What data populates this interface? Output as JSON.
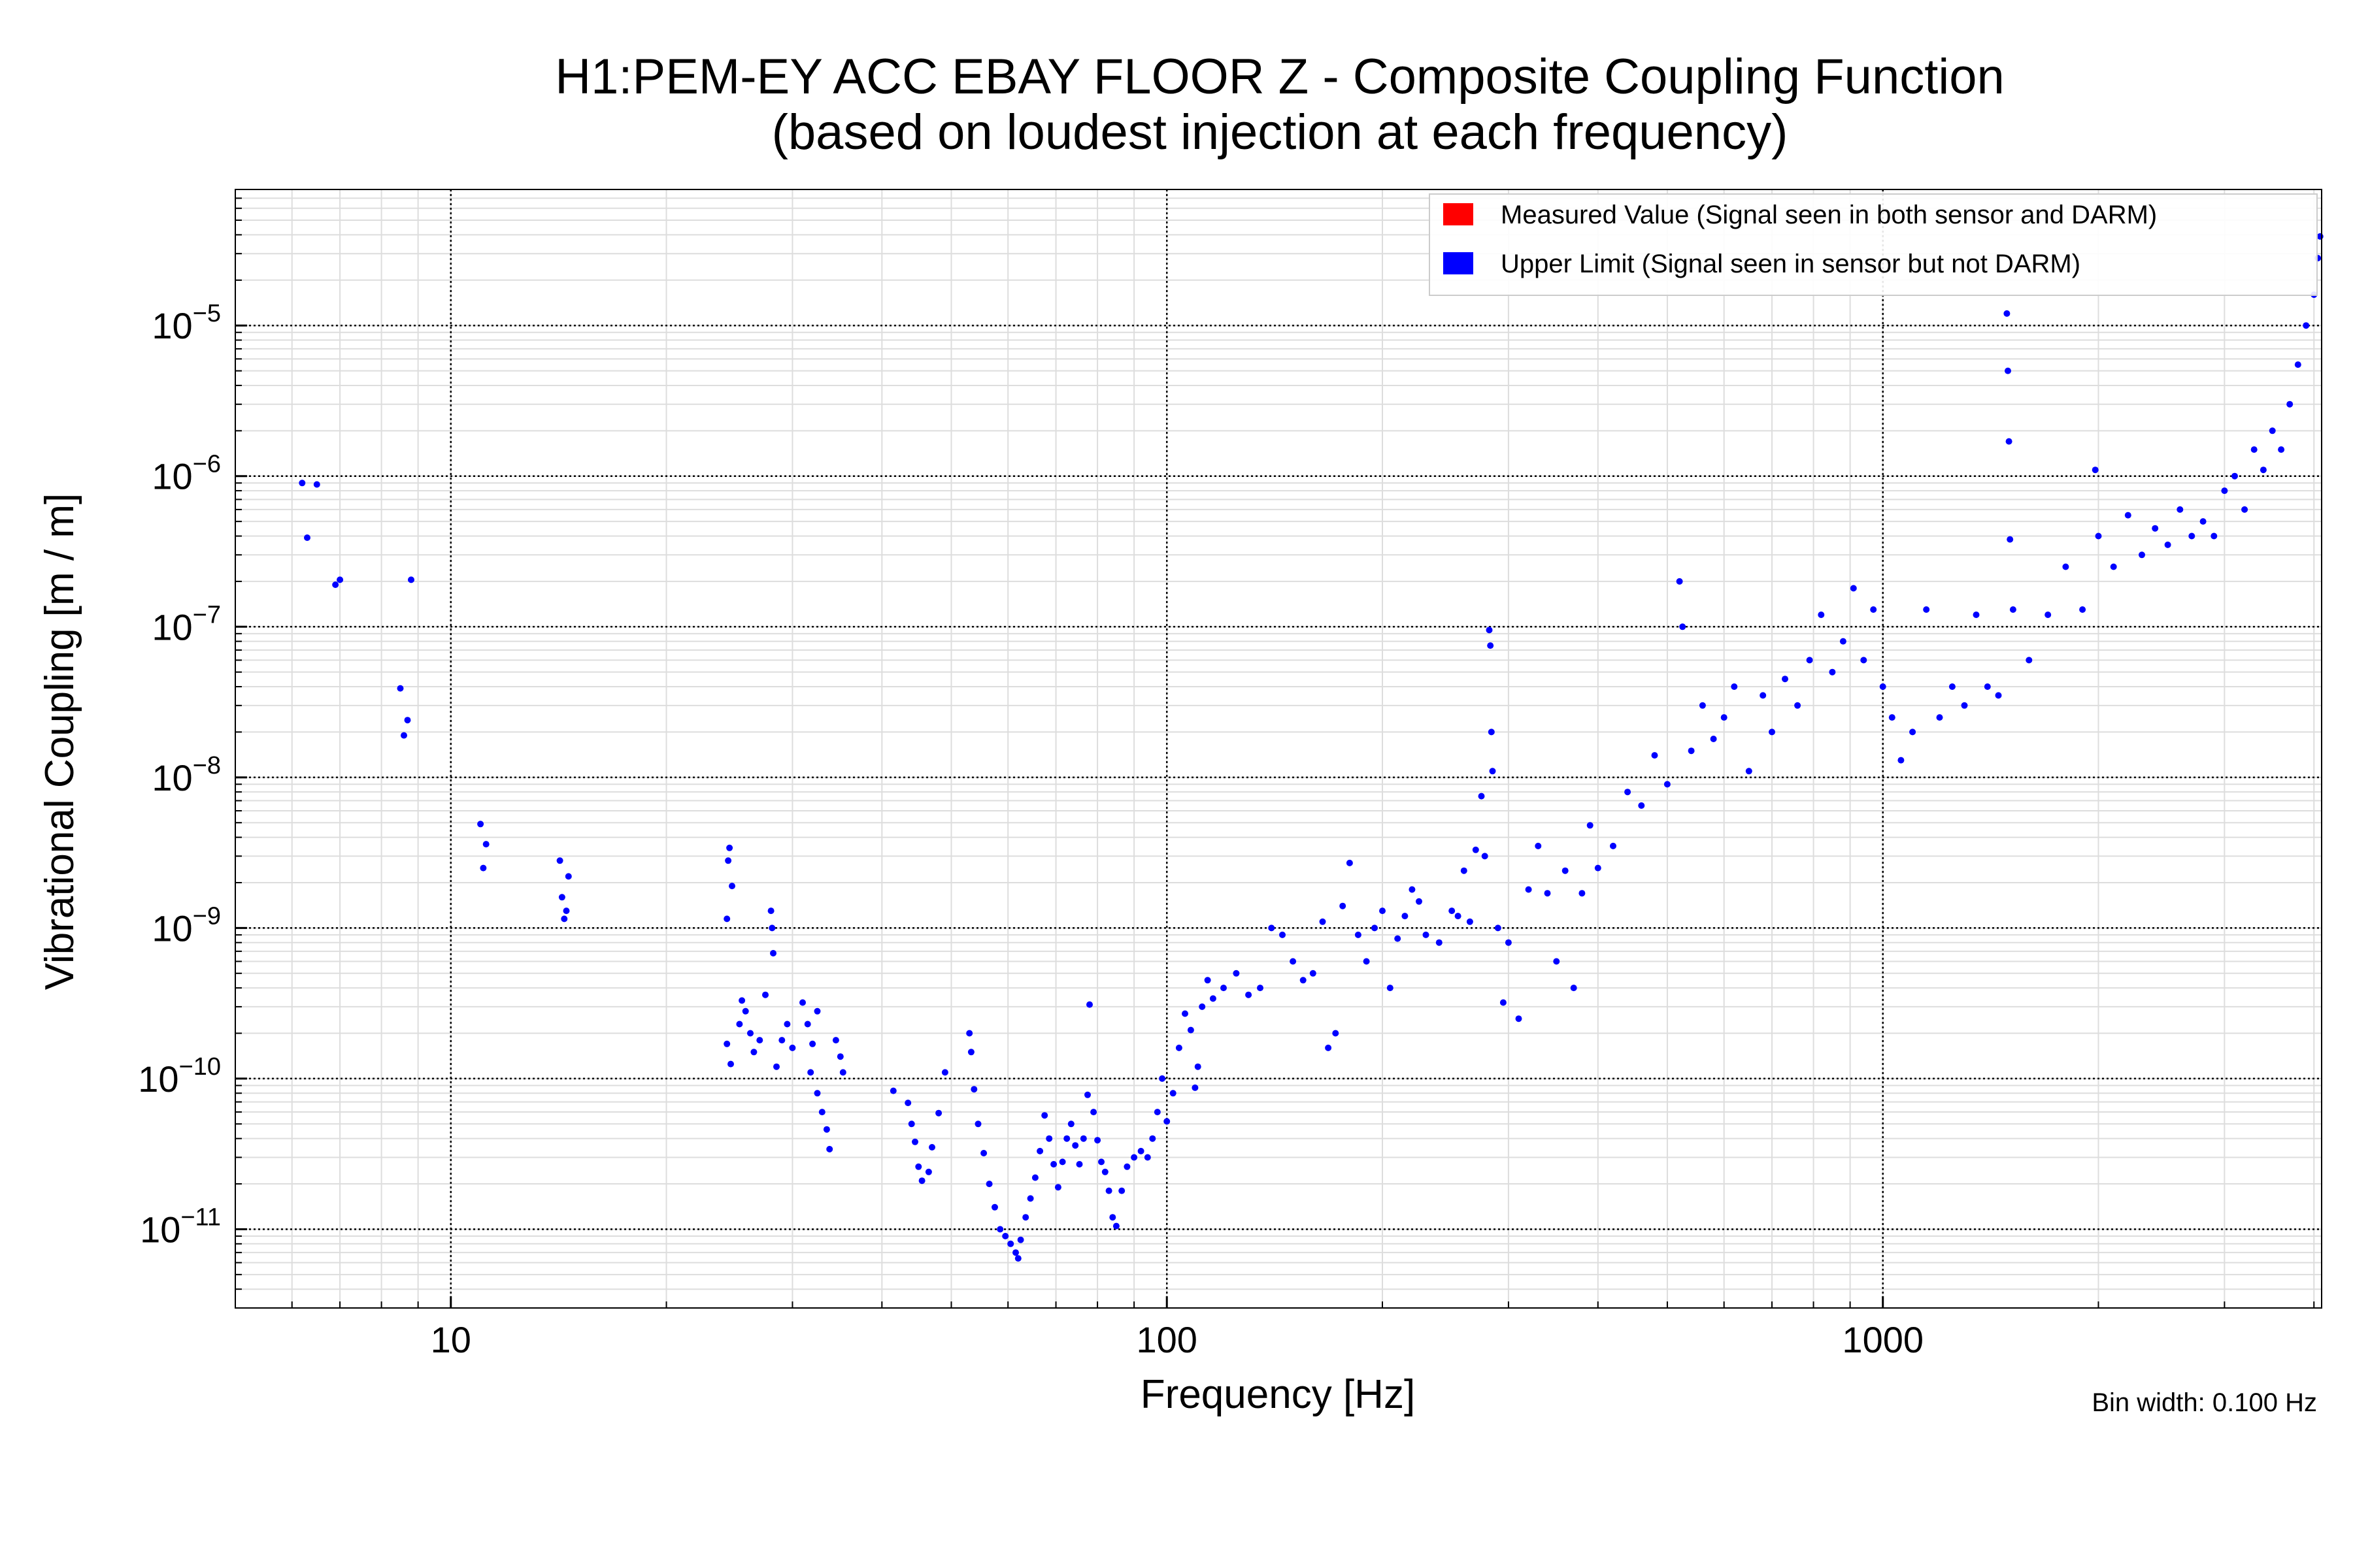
{
  "colors": {
    "measured": "#ff0000",
    "upper_limit": "#0000ff",
    "major_grid": "#000000",
    "minor_grid": "#dddddd",
    "background": "#ffffff"
  },
  "chart_data": {
    "type": "scatter",
    "title_line1": "H1:PEM-EY ACC EBAY FLOOR Z - Composite Coupling Function",
    "title_line2": "(based on loudest injection at each frequency)",
    "xlabel": "Frequency [Hz]",
    "ylabel": "Vibrational Coupling [m / m]",
    "xscale": "log",
    "yscale": "log",
    "xlim": [
      5,
      4100
    ],
    "ylim": [
      3e-12,
      8e-05
    ],
    "x_ticks": [
      10,
      100,
      1000
    ],
    "x_tick_labels": [
      "10",
      "100",
      "1000"
    ],
    "y_ticks": [
      1e-11,
      1e-10,
      1e-09,
      1e-08,
      1e-07,
      1e-06,
      1e-05
    ],
    "y_tick_labels": [
      {
        "base": "10",
        "exp": "−11"
      },
      {
        "base": "10",
        "exp": "−10"
      },
      {
        "base": "10",
        "exp": "−9"
      },
      {
        "base": "10",
        "exp": "−8"
      },
      {
        "base": "10",
        "exp": "−7"
      },
      {
        "base": "10",
        "exp": "−6"
      },
      {
        "base": "10",
        "exp": "−5"
      }
    ],
    "grid": true,
    "legend_position": "top-right",
    "legend": [
      {
        "label": "Measured Value (Signal seen in both sensor and DARM)",
        "color": "#ff0000"
      },
      {
        "label": "Upper Limit (Signal seen in sensor but not DARM)",
        "color": "#0000ff"
      }
    ],
    "note": "Bin width: 0.100 Hz",
    "series": [
      {
        "name": "Measured Value (Signal seen in both sensor and DARM)",
        "color": "#ff0000",
        "points": []
      },
      {
        "name": "Upper Limit (Signal seen in sensor but not DARM)",
        "color": "#0000ff",
        "points": [
          [
            6.2,
            9e-07
          ],
          [
            6.5,
            8.8e-07
          ],
          [
            6.3,
            3.9e-07
          ],
          [
            6.9,
            1.9e-07
          ],
          [
            7.0,
            2.05e-07
          ],
          [
            8.8,
            2.05e-07
          ],
          [
            8.5,
            3.9e-08
          ],
          [
            8.7,
            2.4e-08
          ],
          [
            8.6,
            1.9e-08
          ],
          [
            11.0,
            4.9e-09
          ],
          [
            11.2,
            3.6e-09
          ],
          [
            11.1,
            2.5e-09
          ],
          [
            14.2,
            2.8e-09
          ],
          [
            14.6,
            2.2e-09
          ],
          [
            14.3,
            1.6e-09
          ],
          [
            14.5,
            1.3e-09
          ],
          [
            14.4,
            1.15e-09
          ],
          [
            24.5,
            3.4e-09
          ],
          [
            24.4,
            2.8e-09
          ],
          [
            24.7,
            1.9e-09
          ],
          [
            24.3,
            1.15e-09
          ],
          [
            28.0,
            1.3e-09
          ],
          [
            28.1,
            1e-09
          ],
          [
            28.2,
            6.8e-10
          ],
          [
            27.5,
            3.6e-10
          ],
          [
            24.3,
            1.7e-10
          ],
          [
            24.6,
            1.25e-10
          ],
          [
            25.3,
            2.3e-10
          ],
          [
            25.5,
            3.3e-10
          ],
          [
            25.8,
            2.8e-10
          ],
          [
            26.2,
            2e-10
          ],
          [
            26.5,
            1.5e-10
          ],
          [
            27.0,
            1.8e-10
          ],
          [
            28.5,
            1.2e-10
          ],
          [
            29.0,
            1.8e-10
          ],
          [
            29.5,
            2.3e-10
          ],
          [
            30.0,
            1.6e-10
          ],
          [
            31.0,
            3.2e-10
          ],
          [
            31.5,
            2.3e-10
          ],
          [
            32.0,
            1.7e-10
          ],
          [
            32.5,
            2.8e-10
          ],
          [
            31.8,
            1.1e-10
          ],
          [
            32.5,
            8e-11
          ],
          [
            33.0,
            6e-11
          ],
          [
            33.5,
            4.6e-11
          ],
          [
            33.8,
            3.4e-11
          ],
          [
            34.5,
            1.8e-10
          ],
          [
            35.0,
            1.4e-10
          ],
          [
            35.3,
            1.1e-10
          ],
          [
            41.5,
            8.3e-11
          ],
          [
            43.5,
            6.9e-11
          ],
          [
            44.0,
            5e-11
          ],
          [
            44.5,
            3.8e-11
          ],
          [
            45.0,
            2.6e-11
          ],
          [
            45.5,
            2.1e-11
          ],
          [
            46.5,
            2.4e-11
          ],
          [
            47.0,
            3.5e-11
          ],
          [
            48.0,
            5.9e-11
          ],
          [
            49.0,
            1.1e-10
          ],
          [
            53.0,
            2e-10
          ],
          [
            53.3,
            1.5e-10
          ],
          [
            53.8,
            8.5e-11
          ],
          [
            54.5,
            5e-11
          ],
          [
            55.5,
            3.2e-11
          ],
          [
            56.5,
            2e-11
          ],
          [
            57.5,
            1.4e-11
          ],
          [
            58.5,
            1e-11
          ],
          [
            59.5,
            9e-12
          ],
          [
            60.5,
            8e-12
          ],
          [
            61.5,
            7e-12
          ],
          [
            62.0,
            6.4e-12
          ],
          [
            62.5,
            8.5e-12
          ],
          [
            63.5,
            1.2e-11
          ],
          [
            64.5,
            1.6e-11
          ],
          [
            65.5,
            2.2e-11
          ],
          [
            66.5,
            3.3e-11
          ],
          [
            67.5,
            5.7e-11
          ],
          [
            68.5,
            4e-11
          ],
          [
            69.5,
            2.7e-11
          ],
          [
            70.5,
            1.9e-11
          ],
          [
            71.5,
            2.8e-11
          ],
          [
            72.5,
            4e-11
          ],
          [
            73.5,
            5e-11
          ],
          [
            74.5,
            3.6e-11
          ],
          [
            75.5,
            2.7e-11
          ],
          [
            76.5,
            4e-11
          ],
          [
            77.5,
            7.8e-11
          ],
          [
            78.0,
            3.1e-10
          ],
          [
            79.0,
            6e-11
          ],
          [
            80.0,
            3.9e-11
          ],
          [
            81.0,
            2.8e-11
          ],
          [
            82.0,
            2.4e-11
          ],
          [
            83.0,
            1.8e-11
          ],
          [
            84.0,
            1.2e-11
          ],
          [
            85.0,
            1.05e-11
          ],
          [
            86.5,
            1.8e-11
          ],
          [
            88.0,
            2.6e-11
          ],
          [
            90.0,
            3e-11
          ],
          [
            92.0,
            3.3e-11
          ],
          [
            94.0,
            3e-11
          ],
          [
            95.5,
            4e-11
          ],
          [
            97.0,
            6e-11
          ],
          [
            98.5,
            1e-10
          ],
          [
            100.0,
            5.2e-11
          ],
          [
            102.0,
            8e-11
          ],
          [
            104.0,
            1.6e-10
          ],
          [
            106.0,
            2.7e-10
          ],
          [
            108.0,
            2.1e-10
          ],
          [
            109.5,
            8.7e-11
          ],
          [
            110.5,
            1.2e-10
          ],
          [
            112.0,
            3e-10
          ],
          [
            114.0,
            4.5e-10
          ],
          [
            116.0,
            3.4e-10
          ],
          [
            120.0,
            4e-10
          ],
          [
            125.0,
            5e-10
          ],
          [
            130.0,
            3.6e-10
          ],
          [
            135.0,
            4e-10
          ],
          [
            140.0,
            1e-09
          ],
          [
            145.0,
            9e-10
          ],
          [
            150.0,
            6e-10
          ],
          [
            155.0,
            4.5e-10
          ],
          [
            160.0,
            5e-10
          ],
          [
            165.0,
            1.1e-09
          ],
          [
            168.0,
            1.6e-10
          ],
          [
            172.0,
            2e-10
          ],
          [
            176.0,
            1.4e-09
          ],
          [
            180.0,
            2.7e-09
          ],
          [
            185.0,
            9e-10
          ],
          [
            190.0,
            6e-10
          ],
          [
            195.0,
            1e-09
          ],
          [
            200.0,
            1.3e-09
          ],
          [
            205.0,
            4e-10
          ],
          [
            210.0,
            8.5e-10
          ],
          [
            215.0,
            1.2e-09
          ],
          [
            220.0,
            1.8e-09
          ],
          [
            225.0,
            1.5e-09
          ],
          [
            230.0,
            9e-10
          ],
          [
            240.0,
            8e-10
          ],
          [
            250.0,
            1.3e-09
          ],
          [
            255.0,
            1.2e-09
          ],
          [
            260.0,
            2.4e-09
          ],
          [
            265.0,
            1.1e-09
          ],
          [
            270.0,
            3.3e-09
          ],
          [
            275.0,
            7.5e-09
          ],
          [
            278.0,
            3e-09
          ],
          [
            282.0,
            9.5e-08
          ],
          [
            283.0,
            7.5e-08
          ],
          [
            284.0,
            2e-08
          ],
          [
            285.0,
            1.1e-08
          ],
          [
            290.0,
            1e-09
          ],
          [
            295.0,
            3.2e-10
          ],
          [
            300.0,
            8e-10
          ],
          [
            310.0,
            2.5e-10
          ],
          [
            320.0,
            1.8e-09
          ],
          [
            330.0,
            3.5e-09
          ],
          [
            340.0,
            1.7e-09
          ],
          [
            350.0,
            6e-10
          ],
          [
            360.0,
            2.4e-09
          ],
          [
            370.0,
            4e-10
          ],
          [
            380.0,
            1.7e-09
          ],
          [
            390.0,
            4.8e-09
          ],
          [
            400.0,
            2.5e-09
          ],
          [
            420.0,
            3.5e-09
          ],
          [
            440.0,
            8e-09
          ],
          [
            460.0,
            6.5e-09
          ],
          [
            480.0,
            1.4e-08
          ],
          [
            500.0,
            9e-09
          ],
          [
            520.0,
            2e-07
          ],
          [
            525.0,
            1e-07
          ],
          [
            540.0,
            1.5e-08
          ],
          [
            560.0,
            3e-08
          ],
          [
            580.0,
            1.8e-08
          ],
          [
            600.0,
            2.5e-08
          ],
          [
            620.0,
            4e-08
          ],
          [
            650.0,
            1.1e-08
          ],
          [
            680.0,
            3.5e-08
          ],
          [
            700.0,
            2e-08
          ],
          [
            730.0,
            4.5e-08
          ],
          [
            760.0,
            3e-08
          ],
          [
            790.0,
            6e-08
          ],
          [
            820.0,
            1.2e-07
          ],
          [
            850.0,
            5e-08
          ],
          [
            880.0,
            8e-08
          ],
          [
            910.0,
            1.8e-07
          ],
          [
            940.0,
            6e-08
          ],
          [
            970.0,
            1.3e-07
          ],
          [
            1000.0,
            4e-08
          ],
          [
            1030.0,
            2.5e-08
          ],
          [
            1060.0,
            1.3e-08
          ],
          [
            1100.0,
            2e-08
          ],
          [
            1150.0,
            1.3e-07
          ],
          [
            1200.0,
            2.5e-08
          ],
          [
            1250.0,
            4e-08
          ],
          [
            1300.0,
            3e-08
          ],
          [
            1350.0,
            1.2e-07
          ],
          [
            1400.0,
            4e-08
          ],
          [
            1450.0,
            3.5e-08
          ],
          [
            1490.0,
            1.2e-05
          ],
          [
            1495.0,
            5e-06
          ],
          [
            1500.0,
            1.7e-06
          ],
          [
            1505.0,
            3.8e-07
          ],
          [
            1520.0,
            1.3e-07
          ],
          [
            1600.0,
            6e-08
          ],
          [
            1700.0,
            1.2e-07
          ],
          [
            1800.0,
            2.5e-07
          ],
          [
            1900.0,
            1.3e-07
          ],
          [
            1980.0,
            1.1e-06
          ],
          [
            2000.0,
            4e-07
          ],
          [
            2100.0,
            2.5e-07
          ],
          [
            2200.0,
            5.5e-07
          ],
          [
            2300.0,
            3e-07
          ],
          [
            2400.0,
            4.5e-07
          ],
          [
            2500.0,
            3.5e-07
          ],
          [
            2600.0,
            6e-07
          ],
          [
            2700.0,
            4e-07
          ],
          [
            2800.0,
            5e-07
          ],
          [
            2900.0,
            4e-07
          ],
          [
            3000.0,
            8e-07
          ],
          [
            3100.0,
            1e-06
          ],
          [
            3200.0,
            6e-07
          ],
          [
            3300.0,
            1.5e-06
          ],
          [
            3400.0,
            1.1e-06
          ],
          [
            3500.0,
            2e-06
          ],
          [
            3600.0,
            1.5e-06
          ],
          [
            3700.0,
            3e-06
          ],
          [
            3800.0,
            5.5e-06
          ],
          [
            3900.0,
            1e-05
          ],
          [
            4000.0,
            1.6e-05
          ],
          [
            4050.0,
            2.8e-05
          ],
          [
            4080.0,
            3.9e-05
          ]
        ]
      }
    ]
  }
}
